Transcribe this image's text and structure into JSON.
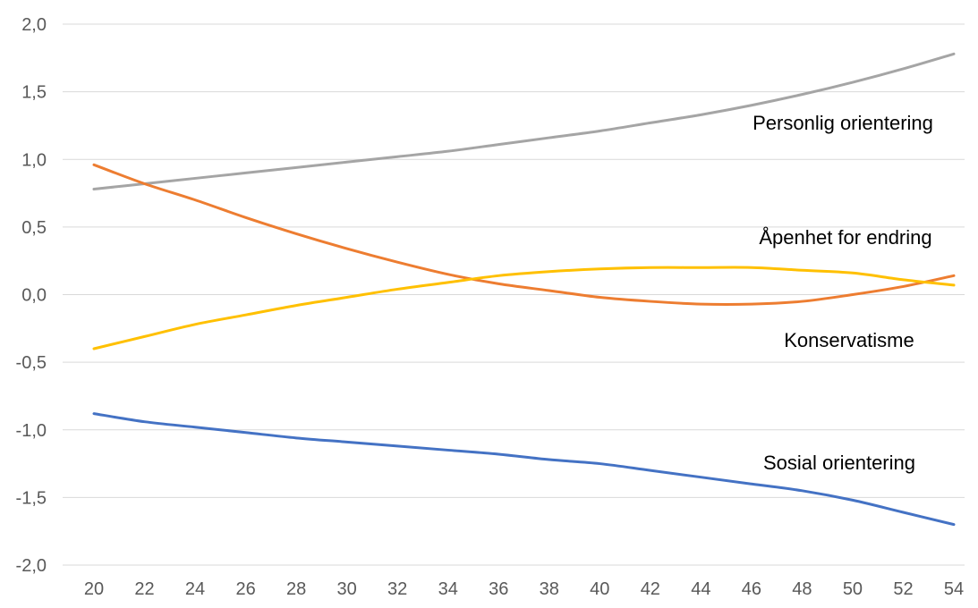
{
  "chart_data": {
    "type": "line",
    "title": "",
    "xlabel": "",
    "ylabel": "",
    "x": [
      20,
      22,
      24,
      26,
      28,
      30,
      32,
      34,
      36,
      38,
      40,
      42,
      44,
      46,
      48,
      50,
      52,
      54
    ],
    "xlim": [
      20,
      54
    ],
    "ylim": [
      -2.0,
      2.0
    ],
    "grid": true,
    "legend": "none",
    "x_tick_labels": [
      "20",
      "22",
      "24",
      "26",
      "28",
      "30",
      "32",
      "34",
      "36",
      "38",
      "40",
      "42",
      "44",
      "46",
      "48",
      "50",
      "52",
      "54"
    ],
    "y_ticks": [
      2.0,
      1.5,
      1.0,
      0.5,
      0.0,
      -0.5,
      -1.0,
      -1.5,
      -2.0
    ],
    "y_tick_labels": [
      "2,0",
      "1,5",
      "1,0",
      "0,5",
      "0,0",
      "-0,5",
      "-1,0",
      "-1,5",
      "-2,0"
    ],
    "series": [
      {
        "name": "Personlig orientering",
        "color": "#a5a5a5",
        "values": [
          0.78,
          0.82,
          0.86,
          0.9,
          0.94,
          0.98,
          1.02,
          1.06,
          1.11,
          1.16,
          1.21,
          1.27,
          1.33,
          1.4,
          1.48,
          1.57,
          1.67,
          1.78
        ]
      },
      {
        "name": "Åpenhet for endring",
        "color": "#ed7d31",
        "values": [
          0.96,
          0.82,
          0.7,
          0.57,
          0.45,
          0.34,
          0.24,
          0.15,
          0.08,
          0.03,
          -0.02,
          -0.05,
          -0.07,
          -0.07,
          -0.05,
          0.0,
          0.06,
          0.14
        ]
      },
      {
        "name": "Konservatisme",
        "color": "#ffc000",
        "values": [
          -0.4,
          -0.31,
          -0.22,
          -0.15,
          -0.08,
          -0.02,
          0.04,
          0.09,
          0.14,
          0.17,
          0.19,
          0.2,
          0.2,
          0.2,
          0.18,
          0.16,
          0.11,
          0.07
        ]
      },
      {
        "name": "Sosial orientering",
        "color": "#4472c4",
        "values": [
          -0.88,
          -0.94,
          -0.98,
          -1.02,
          -1.06,
          -1.09,
          -1.12,
          -1.15,
          -1.18,
          -1.22,
          -1.25,
          -1.3,
          -1.35,
          -1.4,
          -1.45,
          -1.52,
          -1.61,
          -1.7
        ]
      }
    ]
  }
}
